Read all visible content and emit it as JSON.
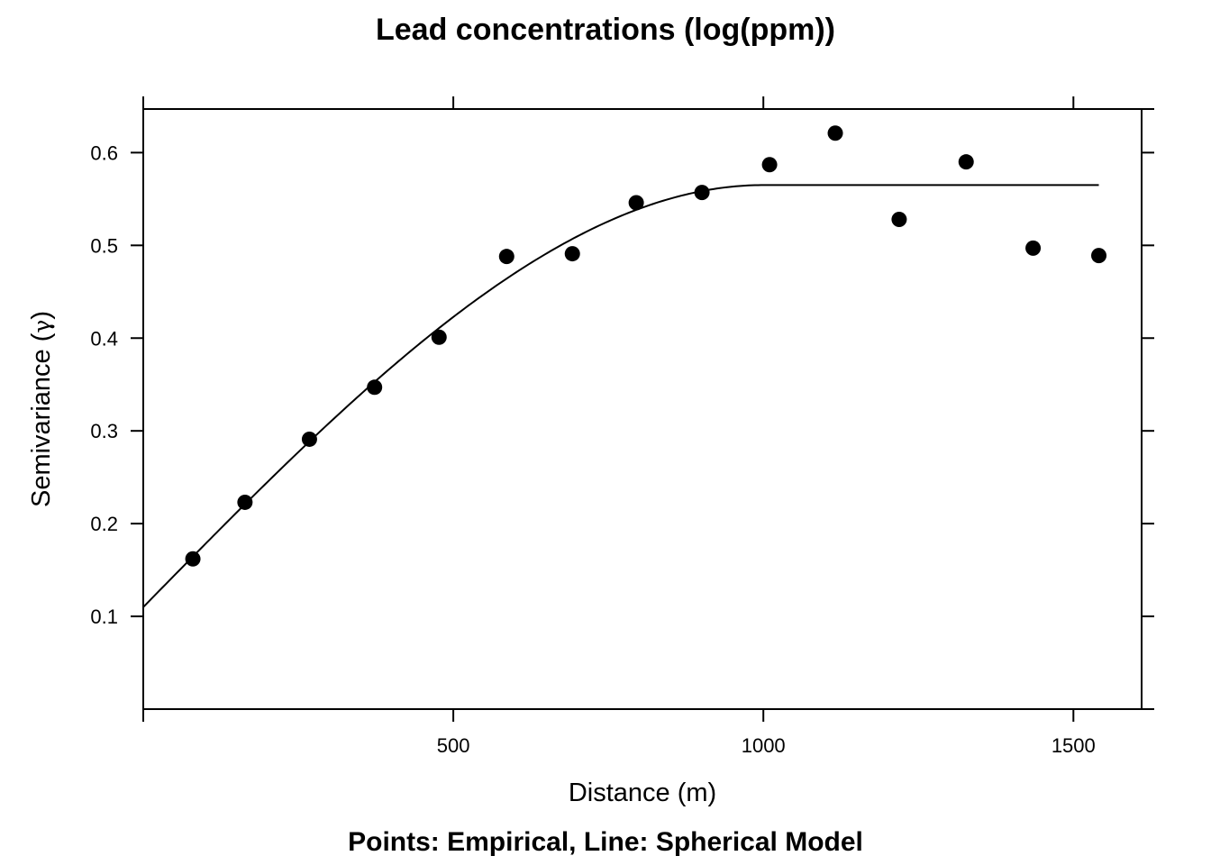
{
  "chart_data": {
    "type": "scatter",
    "title": "Lead concentrations (log(ppm))",
    "xlabel": "Distance (m)",
    "ylabel_prefix": "Semivariance (",
    "ylabel_symbol": "γ",
    "ylabel_suffix": ")",
    "subtitle": "Points: Empirical, Line: Spherical Model",
    "xlim": [
      0,
      1610
    ],
    "ylim": [
      0,
      0.647
    ],
    "x_ticks": [
      500,
      1000,
      1500
    ],
    "x_tick_labels": [
      "500",
      "1000",
      "1500"
    ],
    "y_ticks": [
      0.1,
      0.2,
      0.3,
      0.4,
      0.5,
      0.6
    ],
    "y_tick_labels": [
      "0.1",
      "0.2",
      "0.3",
      "0.4",
      "0.5",
      "0.6"
    ],
    "series": [
      {
        "name": "Empirical",
        "kind": "points",
        "x": [
          80,
          164,
          268,
          373,
          477,
          586,
          692,
          795,
          901,
          1010,
          1116,
          1219,
          1327,
          1435,
          1541
        ],
        "y": [
          0.162,
          0.223,
          0.291,
          0.347,
          0.401,
          0.488,
          0.491,
          0.546,
          0.557,
          0.587,
          0.621,
          0.528,
          0.59,
          0.497,
          0.489
        ]
      },
      {
        "name": "Spherical Model",
        "kind": "line",
        "model": "spherical",
        "nugget": 0.11,
        "psill": 0.455,
        "range": 1000,
        "x_max": 1541
      }
    ]
  }
}
